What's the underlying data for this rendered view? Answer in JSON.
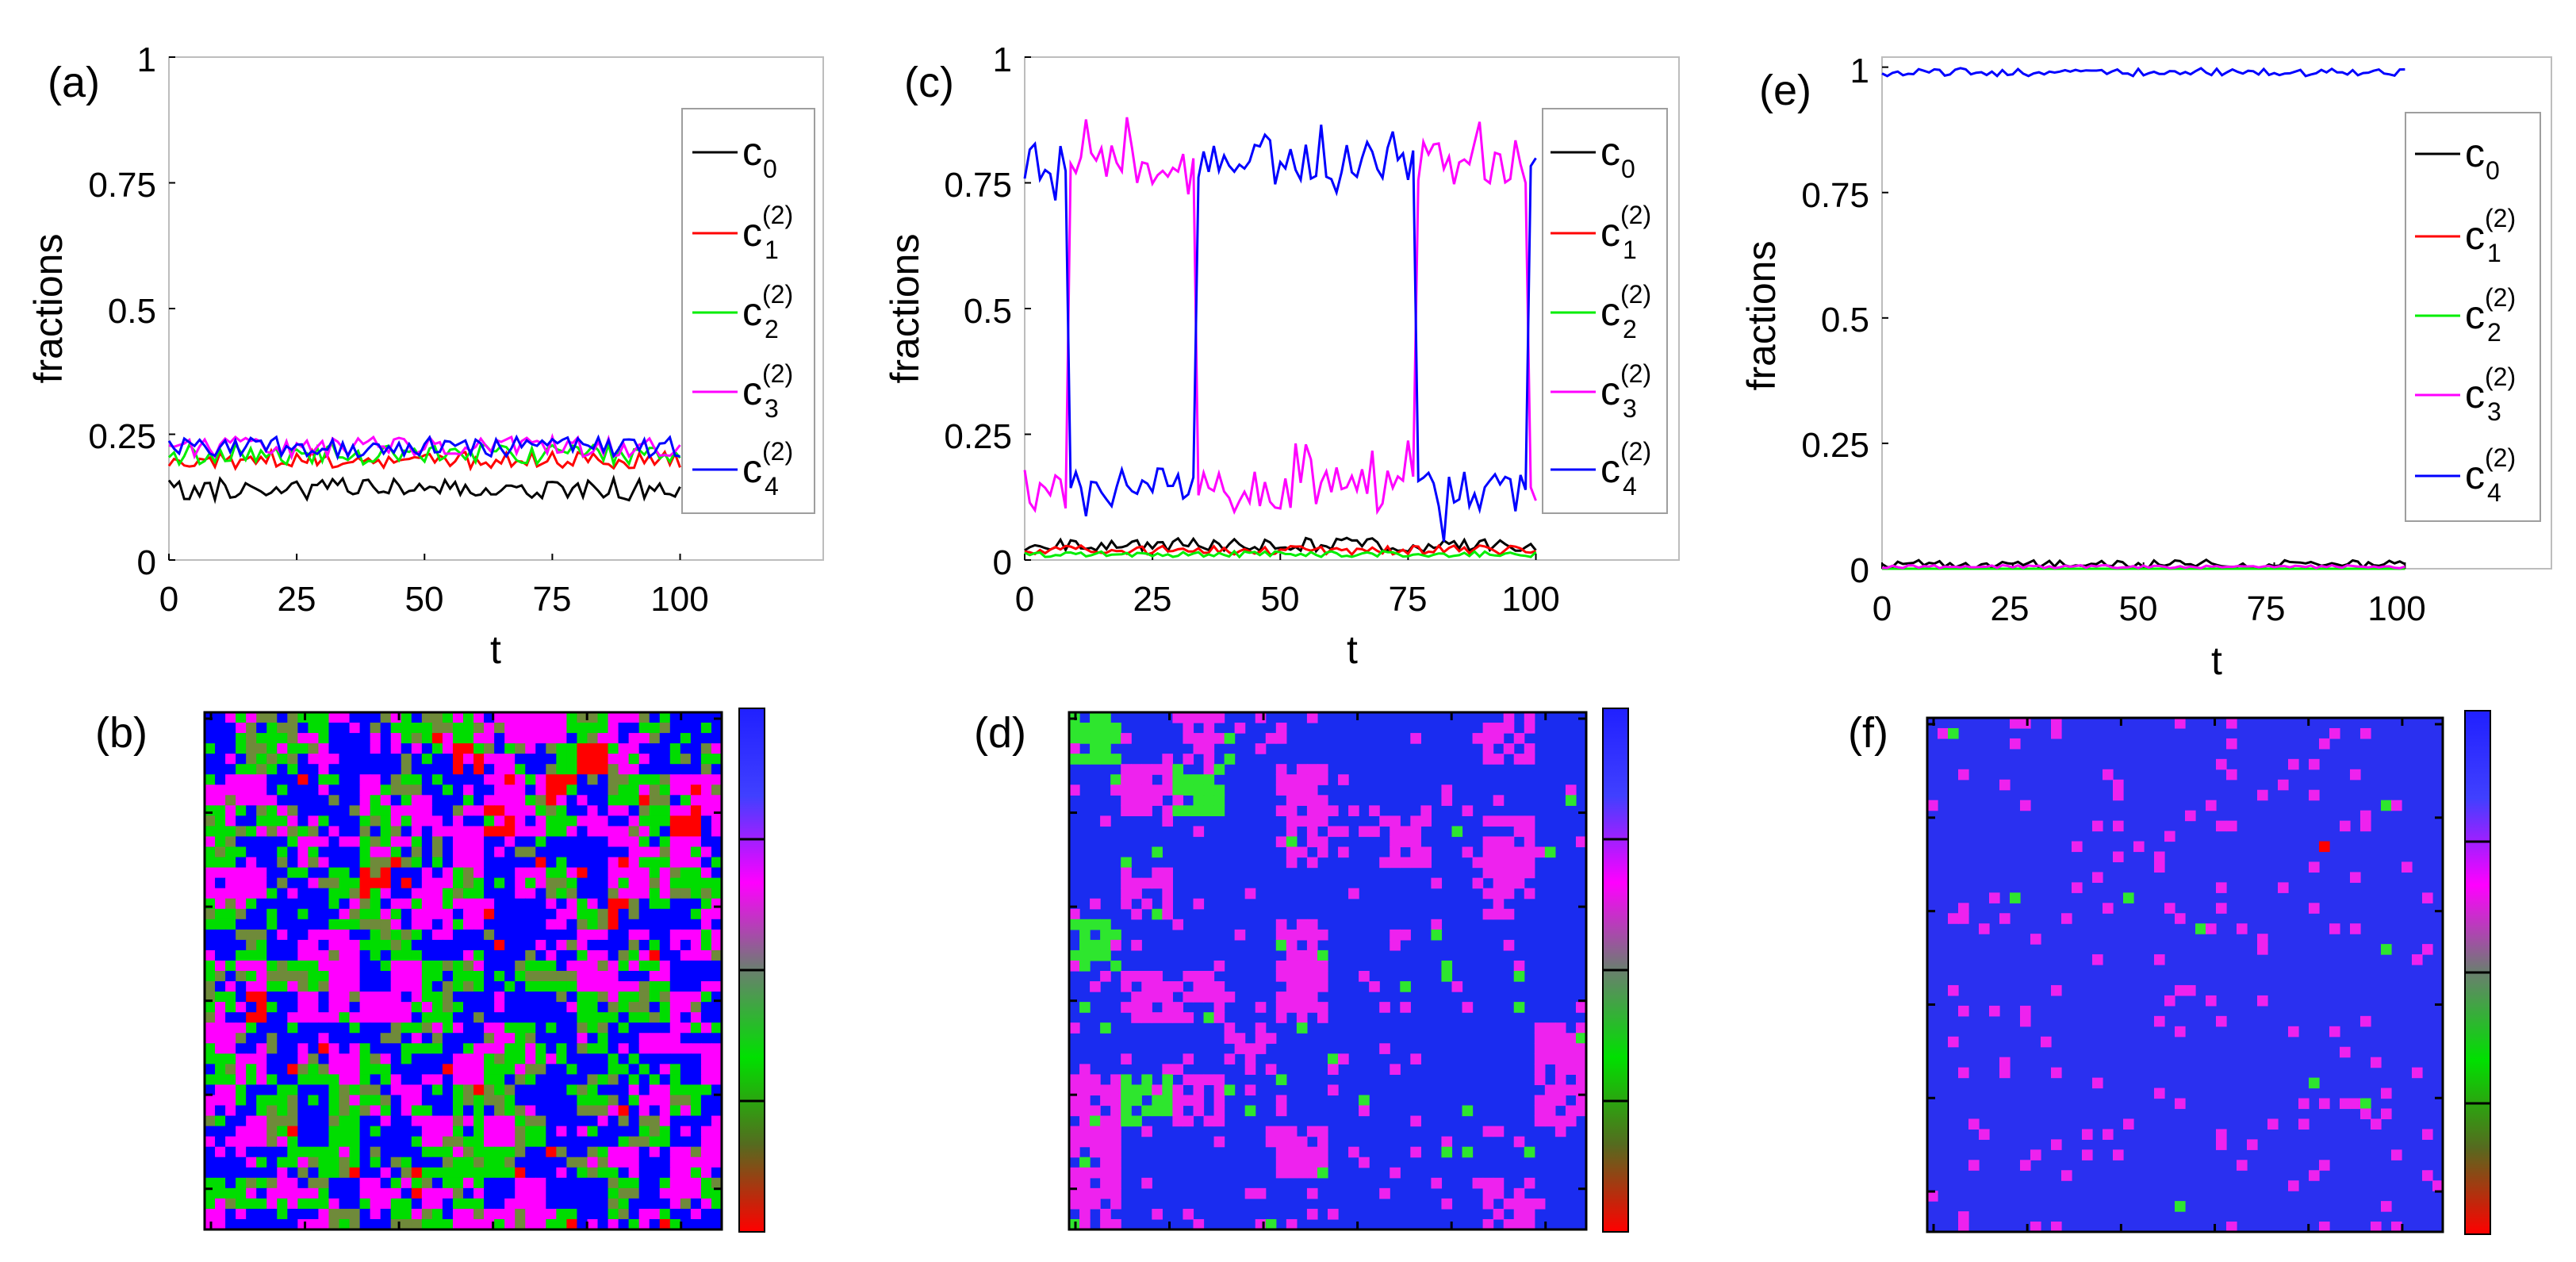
{
  "figure": {
    "panel_labels": [
      "(a)",
      "(b)",
      "(c)",
      "(d)",
      "(e)",
      "(f)"
    ]
  },
  "chart_data": [
    {
      "id": "a",
      "type": "line",
      "panel_label": "(a)",
      "xlabel": "t",
      "ylabel": "fractions",
      "xlim": [
        0,
        128
      ],
      "ylim": [
        0,
        1
      ],
      "xticks": [
        0,
        25,
        50,
        75,
        100
      ],
      "xtick_labels": [
        "0",
        "25",
        "50",
        "75",
        "100"
      ],
      "yticks": [
        0,
        0.25,
        0.5,
        0.75,
        1
      ],
      "ytick_labels": [
        "0",
        "0.25",
        "0.5",
        "0.75",
        "1"
      ],
      "legend_position": "top-right",
      "t_end": 100,
      "series": [
        {
          "name": "c_0",
          "label_base": "c",
          "label_sub": "0",
          "label_sup": "",
          "color": "#000000",
          "mean": 0.14,
          "amplitude": 0.022,
          "seed": 11
        },
        {
          "name": "c_1^(2)",
          "label_base": "c",
          "label_sub": "1",
          "label_sup": "(2)",
          "color": "#ff0000",
          "mean": 0.2,
          "amplitude": 0.018,
          "seed": 12
        },
        {
          "name": "c_2^(2)",
          "label_base": "c",
          "label_sub": "2",
          "label_sup": "(2)",
          "color": "#00ee00",
          "mean": 0.21,
          "amplitude": 0.02,
          "seed": 13
        },
        {
          "name": "c_3^(2)",
          "label_base": "c",
          "label_sub": "3",
          "label_sup": "(2)",
          "color": "#ff00ff",
          "mean": 0.225,
          "amplitude": 0.02,
          "seed": 14
        },
        {
          "name": "c_4^(2)",
          "label_base": "c",
          "label_sub": "4",
          "label_sup": "(2)",
          "color": "#0000ff",
          "mean": 0.225,
          "amplitude": 0.02,
          "seed": 15
        }
      ]
    },
    {
      "id": "c",
      "type": "line",
      "panel_label": "(c)",
      "xlabel": "t",
      "ylabel": "fractions",
      "xlim": [
        0,
        128
      ],
      "ylim": [
        0,
        1
      ],
      "xticks": [
        0,
        25,
        50,
        75,
        100
      ],
      "xtick_labels": [
        "0",
        "25",
        "50",
        "75",
        "100"
      ],
      "yticks": [
        0,
        0.25,
        0.5,
        0.75,
        1
      ],
      "ytick_labels": [
        "0",
        "0.25",
        "0.5",
        "0.75",
        "1"
      ],
      "legend_position": "top-right",
      "t_end": 100,
      "switch_times": [
        9,
        34,
        77,
        99
      ],
      "series": [
        {
          "name": "c_0",
          "label_base": "c",
          "label_sub": "0",
          "label_sup": "",
          "color": "#000000",
          "mean": 0.03,
          "amplitude": 0.014,
          "seed": 21
        },
        {
          "name": "c_1^(2)",
          "label_base": "c",
          "label_sub": "1",
          "label_sup": "(2)",
          "color": "#ff0000",
          "mean": 0.02,
          "amplitude": 0.009,
          "seed": 22
        },
        {
          "name": "c_2^(2)",
          "label_base": "c",
          "label_sub": "2",
          "label_sup": "(2)",
          "color": "#00ee00",
          "mean": 0.012,
          "amplitude": 0.006,
          "seed": 23
        },
        {
          "name": "c_3^(2)",
          "label_base": "c",
          "label_sub": "3",
          "label_sup": "(2)",
          "color": "#ff00ff",
          "low": 0.14,
          "high": 0.79,
          "amplitude": 0.045,
          "starts_low": true,
          "seed": 24
        },
        {
          "name": "c_4^(2)",
          "label_base": "c",
          "label_sub": "4",
          "label_sup": "(2)",
          "color": "#0000ff",
          "low": 0.14,
          "high": 0.79,
          "amplitude": 0.045,
          "starts_low": false,
          "seed": 25
        }
      ]
    },
    {
      "id": "e",
      "type": "line",
      "panel_label": "(e)",
      "xlabel": "t",
      "ylabel": "fractions",
      "xlim": [
        0,
        128
      ],
      "ylim": [
        0,
        1.02
      ],
      "xticks": [
        0,
        25,
        50,
        75,
        100
      ],
      "xtick_labels": [
        "0",
        "25",
        "50",
        "75",
        "100"
      ],
      "yticks": [
        0,
        0.25,
        0.5,
        0.75,
        1
      ],
      "ytick_labels": [
        "0",
        "0.25",
        "0.5",
        "0.75",
        "1"
      ],
      "legend_position": "top-right",
      "t_end": 100,
      "series": [
        {
          "name": "c_0",
          "label_base": "c",
          "label_sub": "0",
          "label_sup": "",
          "color": "#000000",
          "mean": 0.01,
          "amplitude": 0.008,
          "seed": 31
        },
        {
          "name": "c_1^(2)",
          "label_base": "c",
          "label_sub": "1",
          "label_sup": "(2)",
          "color": "#ff0000",
          "mean": 0.0,
          "amplitude": 0.0,
          "seed": 32
        },
        {
          "name": "c_2^(2)",
          "label_base": "c",
          "label_sub": "2",
          "label_sup": "(2)",
          "color": "#00ee00",
          "mean": 0.0,
          "amplitude": 0.0,
          "seed": 33
        },
        {
          "name": "c_3^(2)",
          "label_base": "c",
          "label_sub": "3",
          "label_sup": "(2)",
          "color": "#ff00ff",
          "mean": 0.004,
          "amplitude": 0.003,
          "seed": 34
        },
        {
          "name": "c_4^(2)",
          "label_base": "c",
          "label_sub": "4",
          "label_sup": "(2)",
          "color": "#0000ff",
          "mean": 0.99,
          "amplitude": 0.008,
          "seed": 35
        }
      ]
    },
    {
      "id": "b",
      "type": "heatmap",
      "panel_label": "(b)",
      "grid_size": 50,
      "palette": [
        "#ff0000",
        "#00dd00",
        "#ff00ff",
        "#0000ff"
      ],
      "colorbar_colors": [
        "#ff0000",
        "#556b1f",
        "#00e000",
        "#6a7f6f",
        "#ff00ff",
        "#4040ff",
        "#2020ff"
      ],
      "weights": [
        0.03,
        0.33,
        0.32,
        0.32
      ],
      "cluster_scale": 3,
      "seed": 41
    },
    {
      "id": "d",
      "type": "heatmap",
      "panel_label": "(d)",
      "grid_size": 50,
      "palette": [
        "#ff0000",
        "#2ee62e",
        "#ee22ee",
        "#1a2cf0"
      ],
      "colorbar_colors": [
        "#ff0000",
        "#556b1f",
        "#00e000",
        "#6a7f6f",
        "#ff00ff",
        "#4040ff",
        "#2020ff"
      ],
      "weights": [
        0.0,
        0.04,
        0.16,
        0.8
      ],
      "cluster_scale": 5,
      "seed": 42
    },
    {
      "id": "f",
      "type": "heatmap",
      "panel_label": "(f)",
      "grid_size": 50,
      "palette": [
        "#ff0000",
        "#2ee62e",
        "#ee22ee",
        "#2a30f0"
      ],
      "colorbar_colors": [
        "#ff0000",
        "#556b1f",
        "#00e000",
        "#6a7f6f",
        "#ff00ff",
        "#4040ff",
        "#2020ff"
      ],
      "weights": [
        0.0,
        0.003,
        0.05,
        0.947
      ],
      "cluster_scale": 1,
      "seed": 43
    }
  ]
}
